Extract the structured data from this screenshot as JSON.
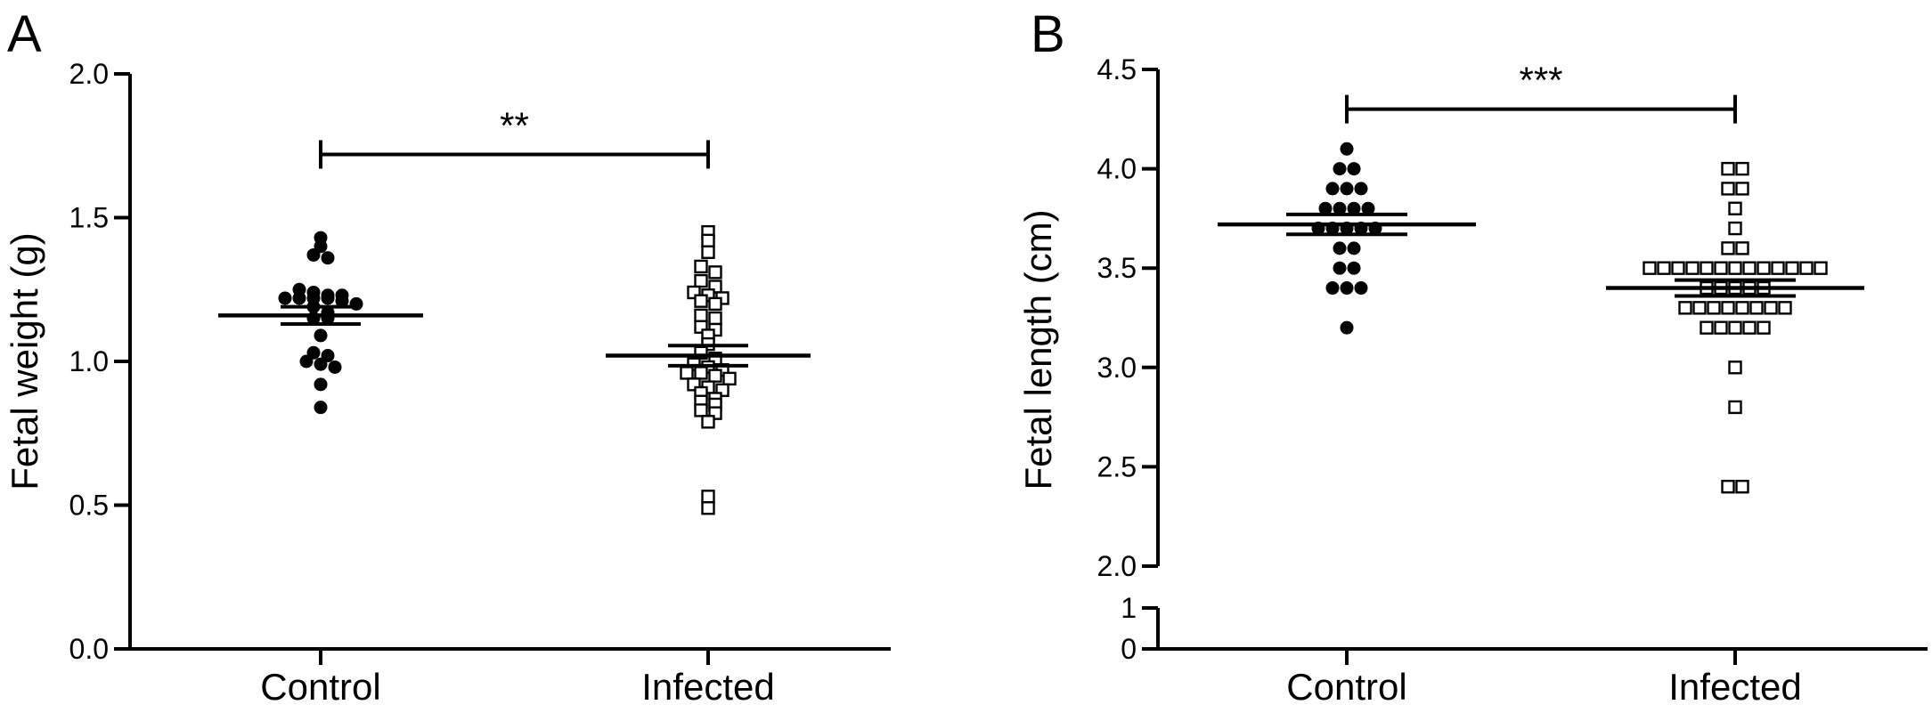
{
  "figure": {
    "panels": [
      {
        "letter": "A"
      },
      {
        "letter": "B"
      }
    ]
  },
  "chart_data": [
    {
      "type": "scatter",
      "panel": "A",
      "title": "",
      "xlabel": "",
      "ylabel": "Fetal weight (g)",
      "categories": [
        "Control",
        "Infected"
      ],
      "ylim": [
        0,
        2.0
      ],
      "yticks": [
        0.0,
        0.5,
        1.0,
        1.5,
        2.0
      ],
      "yticklabels": [
        "0.0",
        "0.5",
        "1.0",
        "1.5",
        "2.0"
      ],
      "grid": false,
      "marker_colors": {
        "Control": "#000000",
        "Infected": "#ffffff"
      },
      "series": [
        {
          "category": "Control",
          "marker": "filled-circle",
          "values": [
            1.43,
            1.4,
            1.37,
            1.36,
            1.25,
            1.24,
            1.23,
            1.23,
            1.22,
            1.22,
            1.22,
            1.22,
            1.21,
            1.2,
            1.19,
            1.17,
            1.15,
            1.15,
            1.09,
            1.03,
            1.02,
            1.0,
            0.99,
            0.98,
            0.92,
            0.84
          ],
          "mean": 1.16,
          "sem": 0.03
        },
        {
          "category": "Infected",
          "marker": "open-square",
          "values": [
            1.45,
            1.42,
            1.38,
            1.33,
            1.31,
            1.28,
            1.26,
            1.24,
            1.23,
            1.22,
            1.21,
            1.2,
            1.16,
            1.15,
            1.12,
            1.11,
            1.09,
            1.06,
            1.03,
            1.01,
            0.99,
            0.98,
            0.97,
            0.96,
            0.96,
            0.95,
            0.94,
            0.92,
            0.91,
            0.9,
            0.89,
            0.87,
            0.86,
            0.85,
            0.83,
            0.82,
            0.79,
            0.53,
            0.49
          ],
          "mean": 1.02,
          "sem": 0.035
        }
      ],
      "significance": {
        "label": "**",
        "from": "Control",
        "to": "Infected",
        "y": 1.72
      }
    },
    {
      "type": "scatter",
      "panel": "B",
      "title": "",
      "xlabel": "",
      "ylabel": "Fetal length (cm)",
      "categories": [
        "Control",
        "Infected"
      ],
      "ylim": [
        0,
        4.5
      ],
      "axis_break": {
        "lower_range": [
          0,
          1
        ],
        "upper_range": [
          2.0,
          4.5
        ]
      },
      "yticks": [
        0,
        1,
        2.0,
        2.5,
        3.0,
        3.5,
        4.0,
        4.5
      ],
      "yticklabels": [
        "0",
        "1",
        "2.0",
        "2.5",
        "3.0",
        "3.5",
        "4.0",
        "4.5"
      ],
      "grid": false,
      "marker_colors": {
        "Control": "#000000",
        "Infected": "#ffffff"
      },
      "series": [
        {
          "category": "Control",
          "marker": "filled-circle",
          "values": [
            4.1,
            4.0,
            4.0,
            3.9,
            3.9,
            3.9,
            3.8,
            3.8,
            3.8,
            3.8,
            3.7,
            3.7,
            3.7,
            3.7,
            3.7,
            3.6,
            3.6,
            3.5,
            3.5,
            3.4,
            3.4,
            3.4,
            3.2
          ],
          "mean": 3.72,
          "sem": 0.05
        },
        {
          "category": "Infected",
          "marker": "open-square",
          "values": [
            4.0,
            4.0,
            3.9,
            3.9,
            3.8,
            3.7,
            3.6,
            3.6,
            3.5,
            3.5,
            3.5,
            3.5,
            3.5,
            3.5,
            3.5,
            3.5,
            3.5,
            3.5,
            3.5,
            3.5,
            3.5,
            3.4,
            3.4,
            3.4,
            3.4,
            3.4,
            3.3,
            3.3,
            3.3,
            3.3,
            3.3,
            3.3,
            3.3,
            3.3,
            3.2,
            3.2,
            3.2,
            3.2,
            3.2,
            3.0,
            2.8,
            2.4,
            2.4
          ],
          "mean": 3.4,
          "sem": 0.04
        }
      ],
      "significance": {
        "label": "***",
        "from": "Control",
        "to": "Infected",
        "y": 4.3
      }
    }
  ]
}
